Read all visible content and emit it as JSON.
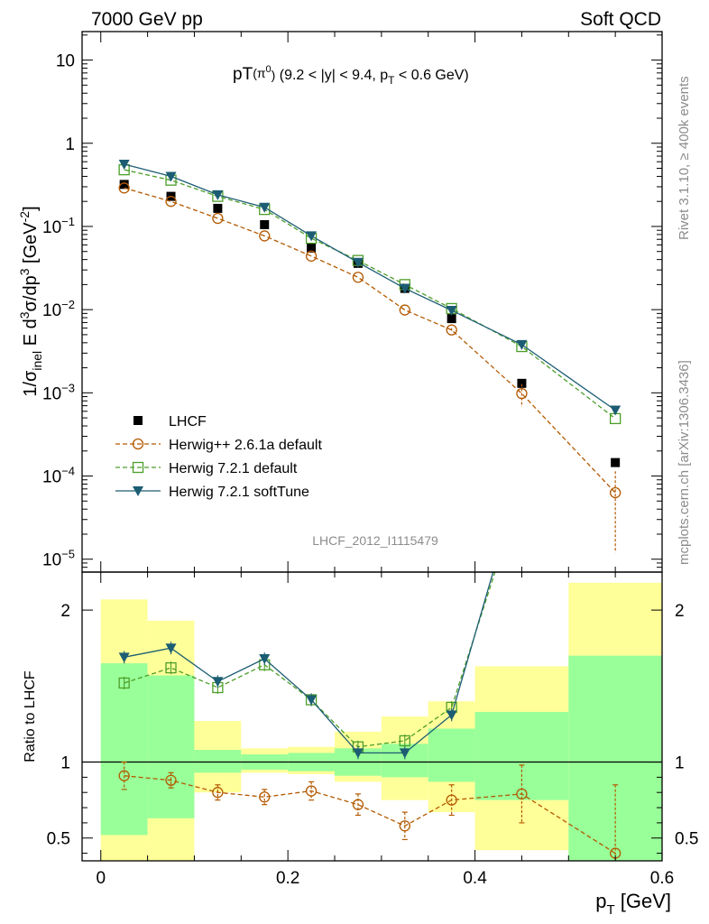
{
  "header": {
    "left": "7000 GeV pp",
    "right": "Soft QCD"
  },
  "side_labels": {
    "top": "Rivet 3.1.10, ≥ 400k events",
    "bottom": "mcplots.cern.ch [arXiv:1306.3436]"
  },
  "watermark": "LHCF_2012_I1115479",
  "chart_data": {
    "type": "line",
    "title": "pT(π⁰) (9.2 < |y| < 9.4, pT < 0.6 GeV)",
    "title_parts": {
      "main": "pT",
      "sup": "0",
      "mid": " (9.2 < |y| < 9.4, p",
      "sub": "T",
      "tail": " < 0.6 GeV)"
    },
    "ylabel": "1/σinel E d³σ/dp³ [GeV⁻²]",
    "ylabel_parts": {
      "a": "1/σ",
      "sub": "inel",
      "b": " E d",
      "sup3": "3",
      "c": "σ/dp",
      "sup3b": "3",
      "d": " [GeV",
      "supm2": "-2",
      "e": "]"
    },
    "xlabel": "pT [GeV]",
    "xlabel_parts": {
      "a": "p",
      "sub": "T",
      "b": " [GeV]"
    },
    "ratio_ylabel": "Ratio to LHCF",
    "xlim": [
      -0.02,
      0.6
    ],
    "ylim": [
      7e-06,
      22
    ],
    "yscale": "log",
    "ratio_ylim": [
      0.35,
      2.25
    ],
    "x_ticks": [
      "0",
      "0.2",
      "0.4",
      "0.6"
    ],
    "y_ticks": [
      {
        "value": 10,
        "base": "10",
        "exp": ""
      },
      {
        "value": 1,
        "base": "1",
        "exp": ""
      },
      {
        "value": 0.1,
        "base": "10",
        "exp": "−1"
      },
      {
        "value": 0.01,
        "base": "10",
        "exp": "−2"
      },
      {
        "value": 0.001,
        "base": "10",
        "exp": "−3"
      },
      {
        "value": 0.0001,
        "base": "10",
        "exp": "−4"
      },
      {
        "value": 1e-05,
        "base": "10",
        "exp": "−5"
      }
    ],
    "ratio_ticks": [
      "0.5",
      "1",
      "2"
    ],
    "bins": [
      [
        0.0,
        0.05
      ],
      [
        0.05,
        0.1
      ],
      [
        0.1,
        0.15
      ],
      [
        0.15,
        0.2
      ],
      [
        0.2,
        0.25
      ],
      [
        0.25,
        0.3
      ],
      [
        0.3,
        0.35
      ],
      [
        0.35,
        0.4
      ],
      [
        0.4,
        0.5
      ],
      [
        0.5,
        0.6
      ]
    ],
    "x": [
      0.025,
      0.075,
      0.125,
      0.175,
      0.225,
      0.275,
      0.325,
      0.375,
      0.45,
      0.55
    ],
    "band_stat": [
      [
        0.52,
        1.65
      ],
      [
        0.63,
        1.57
      ],
      [
        0.93,
        1.08
      ],
      [
        0.95,
        1.05
      ],
      [
        0.94,
        1.06
      ],
      [
        0.91,
        1.09
      ],
      [
        0.9,
        1.12
      ],
      [
        0.87,
        1.22
      ],
      [
        0.75,
        1.33
      ],
      [
        0.34,
        1.7
      ]
    ],
    "band_total": [
      [
        0.34,
        2.07
      ],
      [
        0.34,
        1.93
      ],
      [
        0.8,
        1.27
      ],
      [
        0.93,
        1.09
      ],
      [
        0.92,
        1.1
      ],
      [
        0.87,
        1.2
      ],
      [
        0.75,
        1.3
      ],
      [
        0.67,
        1.4
      ],
      [
        0.42,
        1.63
      ],
      [
        0.34,
        2.18
      ]
    ],
    "legend_position": "lower-left",
    "series": [
      {
        "name": "LHCF",
        "style": "square-marker",
        "color": "#000000",
        "values": [
          0.32,
          0.23,
          0.165,
          0.105,
          0.055,
          0.036,
          0.018,
          0.0078,
          0.0013,
          0.000145
        ]
      },
      {
        "name": "Herwig++ 2.6.1a default",
        "style": "open-circle-dashed",
        "color": "#b35900",
        "values": [
          0.29,
          0.2,
          0.125,
          0.077,
          0.044,
          0.0245,
          0.0099,
          0.0057,
          0.00098,
          6.3e-05
        ],
        "ratio": [
          0.91,
          0.88,
          0.8,
          0.77,
          0.81,
          0.72,
          0.58,
          0.75,
          0.79,
          0.4
        ],
        "ratio_err": [
          0.09,
          0.05,
          0.05,
          0.05,
          0.06,
          0.07,
          0.09,
          0.1,
          0.19,
          0.45
        ],
        "abs_err": [
          0,
          0,
          0,
          0,
          0,
          0,
          0,
          0.0003,
          0.0003,
          5.1e-05
        ]
      },
      {
        "name": "Herwig 7.2.1 default",
        "style": "open-square-dashed",
        "color": "#4d9e2a",
        "values": [
          0.48,
          0.36,
          0.23,
          0.16,
          0.072,
          0.039,
          0.02,
          0.0103,
          0.0036,
          0.00049
        ],
        "ratio": [
          1.52,
          1.62,
          1.49,
          1.64,
          1.41,
          1.1,
          1.14,
          1.36,
          2.8,
          3.4
        ]
      },
      {
        "name": "Herwig 7.2.1 softTune",
        "style": "filled-triangle-solid",
        "color": "#1c5d73",
        "values": [
          0.56,
          0.4,
          0.24,
          0.17,
          0.077,
          0.037,
          0.018,
          0.0098,
          0.0038,
          0.00062
        ],
        "ratio": [
          1.69,
          1.75,
          1.53,
          1.68,
          1.41,
          1.06,
          1.06,
          1.31,
          2.9,
          4.0
        ]
      }
    ],
    "colors": {
      "stat_band": "#99ff99",
      "total_band": "#ffff99"
    }
  }
}
